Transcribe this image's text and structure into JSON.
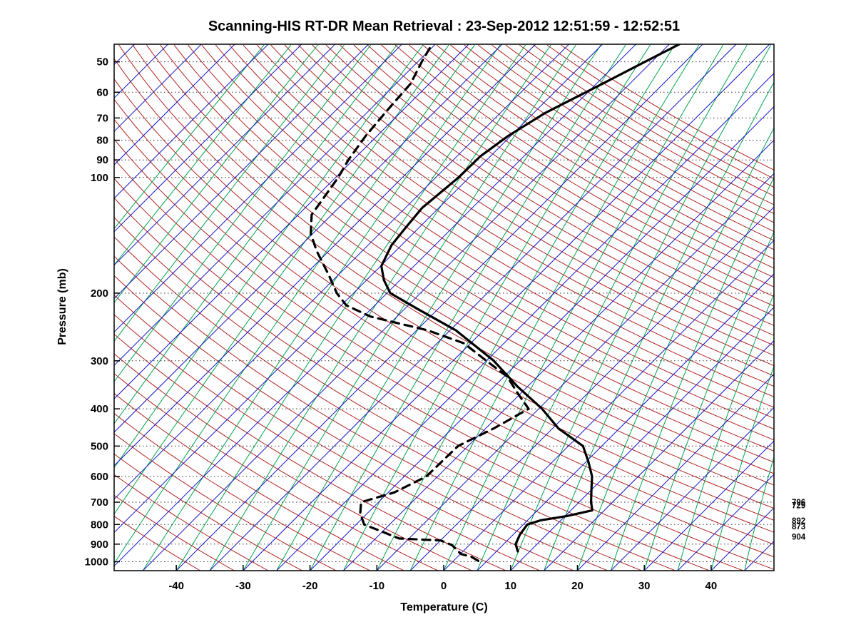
{
  "title": "Scanning-HIS RT-DR Mean Retrieval : 23-Sep-2012 12:51:59 - 12:52:51",
  "chart_data": {
    "type": "line",
    "subtype": "skew-T log-P thermodynamic diagram",
    "title": "Scanning-HIS RT-DR Mean Retrieval : 23-Sep-2012 12:51:59 - 12:52:51",
    "xlabel": "Temperature (C)",
    "ylabel": "Pressure (mb)",
    "x_ticks": [
      -40,
      -30,
      -20,
      -10,
      0,
      10,
      20,
      30,
      40
    ],
    "y_ticks": [
      50,
      60,
      70,
      80,
      90,
      100,
      200,
      300,
      400,
      500,
      600,
      700,
      800,
      900,
      1000
    ],
    "x_range_at_bottom_c": [
      -49.3,
      49.4
    ],
    "pressure_range_mb": [
      45,
      1055
    ],
    "skew": "isotherms slope 45 degrees up to the right",
    "grid": "dotted horizontal lines at labeled pressure levels",
    "background_lines": {
      "isotherms_c": {
        "color": "#1414C8",
        "from": -125,
        "to": 45,
        "step": 5
      },
      "dry_adiabats_theta_c": {
        "color": "#B22222",
        "from": -40,
        "to": 240,
        "step": 5
      },
      "mixing_ratio_lines_surface_td_c": {
        "color": "#00A44E",
        "from": -90,
        "to": 45,
        "step": 5
      }
    },
    "series": [
      {
        "name": "temperature",
        "line": "solid",
        "color": "#000000",
        "points_p_t": [
          [
            940,
            8.2
          ],
          [
            900,
            6.8
          ],
          [
            850,
            6.0
          ],
          [
            800,
            5.6
          ],
          [
            780,
            7.0
          ],
          [
            760,
            10.3
          ],
          [
            735,
            13.2
          ],
          [
            700,
            11.8
          ],
          [
            650,
            10.0
          ],
          [
            600,
            8.1
          ],
          [
            550,
            5.4
          ],
          [
            500,
            2.2
          ],
          [
            450,
            -4.1
          ],
          [
            400,
            -9.5
          ],
          [
            350,
            -16.5
          ],
          [
            300,
            -23.9
          ],
          [
            250,
            -34.1
          ],
          [
            220,
            -43.0
          ],
          [
            200,
            -49.5
          ],
          [
            185,
            -52.4
          ],
          [
            170,
            -54.9
          ],
          [
            150,
            -56.5
          ],
          [
            135,
            -57.0
          ],
          [
            120,
            -57.5
          ],
          [
            100,
            -56.6
          ],
          [
            88,
            -56.5
          ],
          [
            78,
            -55.4
          ],
          [
            68,
            -53.3
          ],
          [
            58,
            -49.5
          ],
          [
            50,
            -46.0
          ],
          [
            45,
            -43.5
          ]
        ]
      },
      {
        "name": "dewpoint",
        "line": "dashed",
        "color": "#000000",
        "points_p_t": [
          [
            995,
            3.7
          ],
          [
            970,
            2.0
          ],
          [
            955,
            0.1
          ],
          [
            905,
            -2.6
          ],
          [
            880,
            -5.0
          ],
          [
            870,
            -11.5
          ],
          [
            850,
            -13.5
          ],
          [
            800,
            -18.8
          ],
          [
            750,
            -21.0
          ],
          [
            700,
            -22.6
          ],
          [
            660,
            -19.1
          ],
          [
            600,
            -16.7
          ],
          [
            550,
            -16.6
          ],
          [
            500,
            -16.5
          ],
          [
            450,
            -13.8
          ],
          [
            400,
            -11.5
          ],
          [
            365,
            -15.4
          ],
          [
            330,
            -19.5
          ],
          [
            300,
            -25.0
          ],
          [
            270,
            -31.0
          ],
          [
            250,
            -38.3
          ],
          [
            230,
            -49.0
          ],
          [
            215,
            -54.3
          ],
          [
            200,
            -57.5
          ],
          [
            180,
            -61.3
          ],
          [
            155,
            -66.9
          ],
          [
            140,
            -70.3
          ],
          [
            125,
            -73.0
          ],
          [
            100,
            -74.6
          ],
          [
            90,
            -75.7
          ],
          [
            78,
            -76.7
          ],
          [
            67,
            -77.3
          ],
          [
            57,
            -77.8
          ],
          [
            50,
            -79.4
          ],
          [
            45,
            -80.5
          ]
        ]
      }
    ],
    "right_edge_labels": [
      {
        "text": "796",
        "p": 700
      },
      {
        "text": "729",
        "p": 714
      },
      {
        "text": "892",
        "p": 782
      },
      {
        "text": "873",
        "p": 810
      },
      {
        "text": "904",
        "p": 862
      }
    ]
  }
}
